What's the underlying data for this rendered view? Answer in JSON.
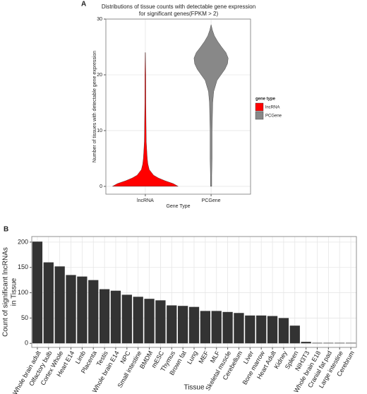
{
  "chart_data": [
    {
      "type": "violin",
      "panel": "A",
      "title": [
        "Distributions of tissue counts with detectable gene expression",
        "for significant genes(FPKM > 2)"
      ],
      "ylabel": "Number of tissues with detectable gene expression",
      "xlabel": "Gene Type",
      "categories": [
        "lncRNA",
        "PCGene"
      ],
      "legend_title": "gene type",
      "legend": "right",
      "grid": true,
      "ylim": [
        -1.4,
        30
      ],
      "yticks": [
        0,
        10,
        20,
        30
      ],
      "series": [
        {
          "name": "lncRNA",
          "color": "#ff0000",
          "y": [
            0,
            0.5,
            1,
            1.5,
            2,
            3,
            4,
            5,
            6,
            8,
            10,
            15,
            20,
            24
          ],
          "density": [
            1.0,
            0.85,
            0.6,
            0.4,
            0.25,
            0.12,
            0.08,
            0.06,
            0.05,
            0.03,
            0.025,
            0.015,
            0.012,
            0.005
          ]
        },
        {
          "name": "PCGene",
          "color": "#888888",
          "y": [
            0,
            2,
            5,
            10,
            15,
            17,
            19,
            20,
            21,
            22,
            23,
            24,
            25,
            26,
            27,
            28,
            29
          ],
          "density": [
            0.02,
            0.02,
            0.03,
            0.03,
            0.05,
            0.08,
            0.18,
            0.3,
            0.42,
            0.5,
            0.52,
            0.45,
            0.32,
            0.2,
            0.1,
            0.04,
            0.0
          ]
        }
      ]
    },
    {
      "type": "bar",
      "panel": "B",
      "ylabel": [
        "Count of significant lncRNAs",
        "in Tissue"
      ],
      "xlabel": "Tissue",
      "grid": true,
      "color": "#333333",
      "ylim": [
        -8,
        211
      ],
      "yticks": [
        0,
        50,
        100,
        150,
        200
      ],
      "categories": [
        "Whole brain adult",
        "Olfactory bulb",
        "Cortex Whole",
        "Heart E14",
        "Limb",
        "Placenta",
        "Testis",
        "Whole brain E14",
        "NPC",
        "Small intestine",
        "BMDM",
        "mESC",
        "Thymus",
        "Brown fat",
        "Lung",
        "MEF",
        "MLF",
        "Skeletal muscle",
        "Cerebellum",
        "Liver",
        "Bone marrow",
        "Heart Adult",
        "Kidney",
        "Spleen",
        "NIH3T3",
        "Whole brain E18",
        "Cranial fat pad",
        "Large intestine",
        "Cerebrum"
      ],
      "values": [
        201,
        160,
        152,
        135,
        132,
        125,
        107,
        104,
        96,
        92,
        88,
        85,
        75,
        74,
        72,
        64,
        64,
        62,
        60,
        55,
        55,
        54,
        50,
        35,
        3,
        1,
        1,
        1,
        1
      ],
      "label_colors": [
        "#e8141b",
        "#e8141b",
        "#e8141b",
        "#222222",
        "#222222",
        "#222222",
        "#222222",
        "#e8141b",
        "#e8141b",
        "#222222",
        "#222222",
        "#222222",
        "#222222",
        "#222222",
        "#222222",
        "#222222",
        "#222222",
        "#222222",
        "#e8141b",
        "#222222",
        "#222222",
        "#222222",
        "#222222",
        "#222222",
        "#222222",
        "#222222",
        "#222222",
        "#222222",
        "#e8141b"
      ]
    }
  ]
}
